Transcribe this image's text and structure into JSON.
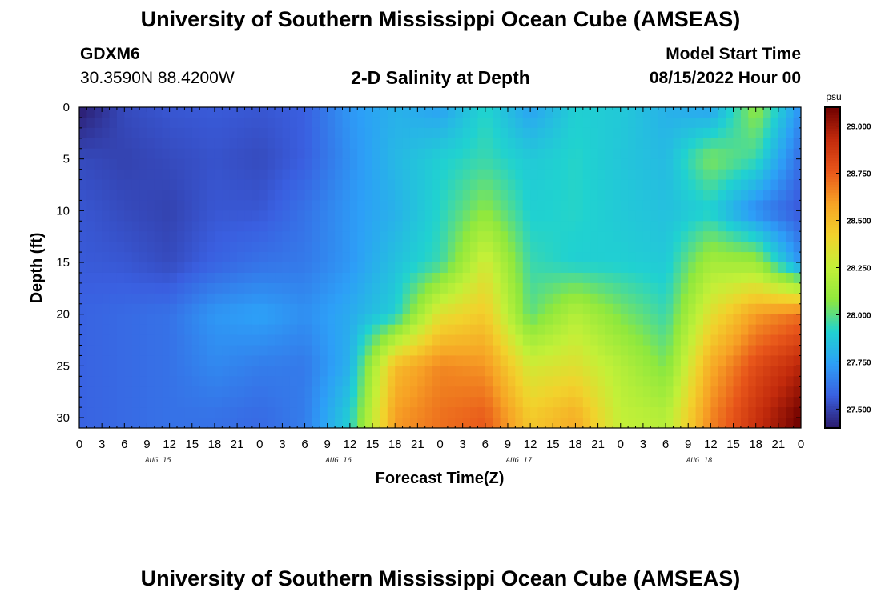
{
  "header": {
    "title": "University of Southern Mississippi Ocean Cube (AMSEAS)",
    "station": "GDXM6",
    "coordinates": "30.3590N  88.4200W",
    "plot_title": "2-D Salinity at Depth",
    "model_start_label": "Model Start Time",
    "model_start_value": "08/15/2022 Hour 00"
  },
  "footer": {
    "title": "University of Southern Mississippi Ocean Cube (AMSEAS)"
  },
  "chart_data": {
    "type": "heatmap",
    "xlabel": "Forecast Time(Z)",
    "ylabel": "Depth (ft)",
    "x_hours": [
      0,
      96
    ],
    "x_tick_labels": [
      "0",
      "3",
      "6",
      "9",
      "12",
      "15",
      "18",
      "21",
      "0",
      "3",
      "6",
      "9",
      "12",
      "15",
      "18",
      "21",
      "0",
      "3",
      "6",
      "9",
      "12",
      "15",
      "18",
      "21",
      "0",
      "3",
      "6",
      "9",
      "12",
      "15",
      "18",
      "21",
      "0"
    ],
    "day_labels": [
      "AUG 15",
      "AUG 16",
      "AUG 17",
      "AUG 18"
    ],
    "y_ticks": [
      0,
      5,
      10,
      15,
      20,
      25,
      30
    ],
    "ylim": [
      0,
      31
    ],
    "colorbar": {
      "unit": "psu",
      "range": [
        27.4,
        29.1
      ],
      "ticks": [
        "29.000",
        "28.750",
        "28.500",
        "28.250",
        "28.000",
        "27.750",
        "27.500"
      ],
      "colors": [
        "#2b1a6b",
        "#3a5fe0",
        "#2d9ff7",
        "#20d2d0",
        "#8fe83d",
        "#c3f038",
        "#f2d22c",
        "#f7a225",
        "#e8561a",
        "#c22a0c",
        "#6d0000"
      ]
    },
    "depth_rows_ft": [
      0,
      5,
      10,
      15,
      20,
      25,
      30
    ],
    "hour_cols": [
      0,
      6,
      12,
      18,
      24,
      30,
      36,
      42,
      48,
      54,
      60,
      66,
      72,
      78,
      84,
      90,
      96
    ],
    "salinity_psu": [
      [
        27.4,
        27.52,
        27.55,
        27.56,
        27.55,
        27.57,
        27.72,
        27.8,
        27.75,
        27.92,
        27.75,
        27.9,
        27.88,
        27.8,
        27.75,
        28.1,
        27.7
      ],
      [
        27.52,
        27.5,
        27.52,
        27.54,
        27.52,
        27.57,
        27.7,
        27.82,
        27.9,
        27.95,
        27.88,
        27.92,
        27.87,
        27.83,
        28.05,
        27.95,
        27.6
      ],
      [
        27.55,
        27.52,
        27.5,
        27.55,
        27.55,
        27.62,
        27.72,
        27.8,
        27.92,
        28.08,
        27.9,
        27.92,
        27.88,
        27.85,
        27.9,
        27.68,
        27.55
      ],
      [
        27.56,
        27.55,
        27.52,
        27.58,
        27.62,
        27.64,
        27.72,
        27.85,
        27.95,
        28.3,
        27.95,
        27.9,
        27.9,
        27.88,
        28.15,
        28.12,
        27.7
      ],
      [
        27.58,
        27.6,
        27.62,
        27.72,
        27.75,
        27.7,
        27.78,
        27.9,
        28.35,
        28.45,
        28.0,
        28.2,
        28.05,
        27.95,
        28.35,
        28.6,
        28.7
      ],
      [
        27.58,
        27.6,
        27.62,
        27.68,
        27.65,
        27.64,
        27.8,
        28.5,
        28.65,
        28.62,
        28.3,
        28.35,
        28.2,
        28.05,
        28.55,
        28.8,
        28.95
      ],
      [
        27.58,
        27.6,
        27.62,
        27.62,
        27.6,
        27.65,
        27.9,
        28.6,
        28.7,
        28.75,
        28.45,
        28.55,
        28.25,
        28.2,
        28.65,
        28.9,
        29.1
      ]
    ]
  }
}
